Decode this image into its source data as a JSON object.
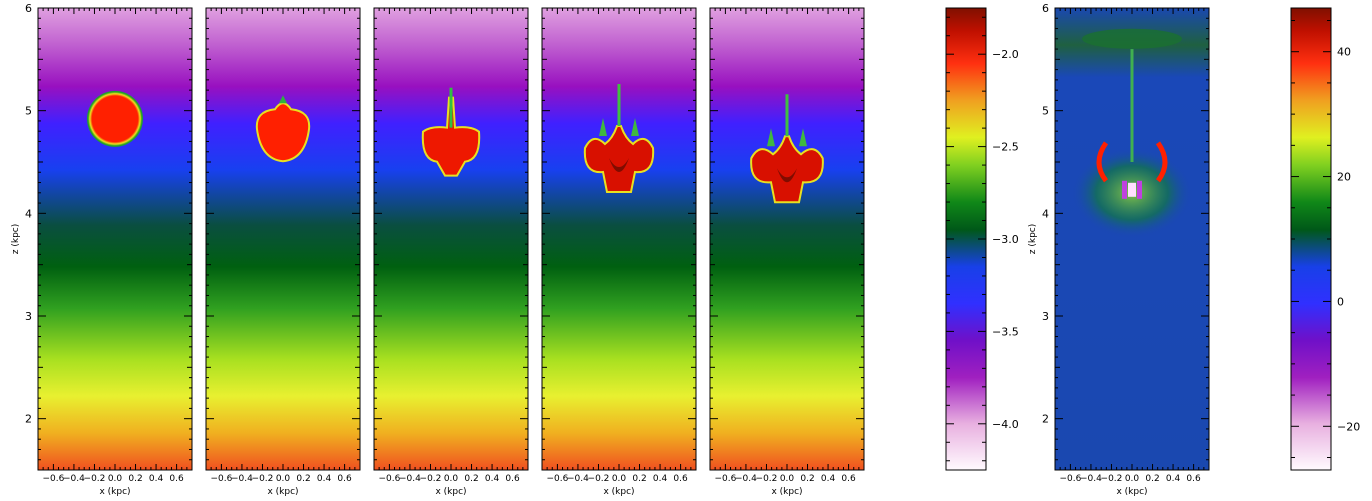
{
  "chart_data": [
    {
      "type": "heatmap",
      "panels": 5,
      "xlabel": "x (kpc)",
      "ylabel": "z (kpc)",
      "xlim": [
        -0.75,
        0.75
      ],
      "ylim": [
        1.5,
        6.0
      ],
      "xticks": [
        "−0.6",
        "−0.4",
        "−0.2",
        "0.0",
        "0.2",
        "0.4",
        "0.6"
      ],
      "yticks": [
        "2",
        "3",
        "4",
        "5",
        "6"
      ],
      "blob_center_z": [
        4.92,
        4.78,
        4.62,
        4.5,
        4.4
      ],
      "colorbar": {
        "range": [
          -4.25,
          -1.75
        ],
        "ticks": [
          "−2.0",
          "−2.5",
          "−3.0",
          "−3.5",
          "−4.0"
        ],
        "tick_values": [
          -2.0,
          -2.5,
          -3.0,
          -3.5,
          -4.0
        ]
      }
    },
    {
      "type": "heatmap",
      "panels": 1,
      "xlabel": "x (kpc)",
      "ylabel": "z (kpc)",
      "xlim": [
        -0.75,
        0.75
      ],
      "ylim": [
        1.5,
        6.0
      ],
      "xticks": [
        "−0.6",
        "−0.4",
        "−0.2",
        "0.0",
        "0.2",
        "0.4",
        "0.6"
      ],
      "yticks": [
        "2",
        "3",
        "4",
        "5",
        "6"
      ],
      "colorbar": {
        "range": [
          -27,
          47
        ],
        "ticks": [
          "40",
          "20",
          "0",
          "−20"
        ],
        "tick_values": [
          40,
          20,
          0,
          -20
        ]
      }
    }
  ],
  "colors": {
    "scale": [
      "#fffafe",
      "#e8b0e0",
      "#b040c8",
      "#9010c0",
      "#3838ff",
      "#1838e8",
      "#005a10",
      "#108818",
      "#58c020",
      "#c8f020",
      "#f0f020",
      "#f0a020",
      "#ff3010",
      "#c01000",
      "#801000"
    ]
  }
}
